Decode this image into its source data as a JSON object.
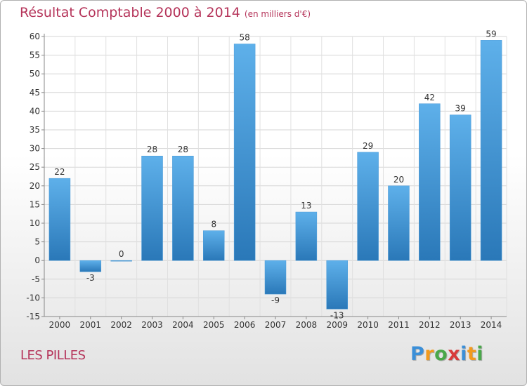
{
  "logo_text": [
    "P",
    "r",
    "o",
    "x",
    "i",
    "t",
    "i"
  ],
  "chart_data": {
    "type": "bar",
    "title": "Résultat Comptable 2000 à 2014",
    "subtitle": "(en milliers d'€)",
    "place": "LES PILLES",
    "categories": [
      "2000",
      "2001",
      "2002",
      "2003",
      "2004",
      "2005",
      "2006",
      "2007",
      "2008",
      "2009",
      "2010",
      "2011",
      "2012",
      "2013",
      "2014"
    ],
    "values": [
      22,
      -3,
      0,
      28,
      28,
      8,
      58,
      -9,
      13,
      -13,
      29,
      20,
      42,
      39,
      59
    ],
    "data_labels": [
      "22",
      "-3",
      "0",
      "28",
      "28",
      "8",
      "58",
      "-9",
      "13",
      "-13",
      "29",
      "20",
      "42",
      "39",
      "59"
    ],
    "y_ticks": [
      60,
      55,
      50,
      45,
      40,
      35,
      30,
      25,
      20,
      15,
      10,
      5,
      0,
      -5,
      -10,
      -15
    ],
    "y_tick_labels": [
      "60",
      "55",
      "50",
      "45",
      "40",
      "35",
      "30",
      "25",
      "20",
      "15",
      "10",
      "5",
      "0",
      "-5",
      "-10",
      "-15"
    ],
    "ylim": [
      -15,
      60
    ],
    "xlabel": "",
    "ylabel": "",
    "grid": true,
    "legend": false,
    "bar_color_light": "#5eb0ea",
    "bar_color_dark": "#2a78b8"
  }
}
